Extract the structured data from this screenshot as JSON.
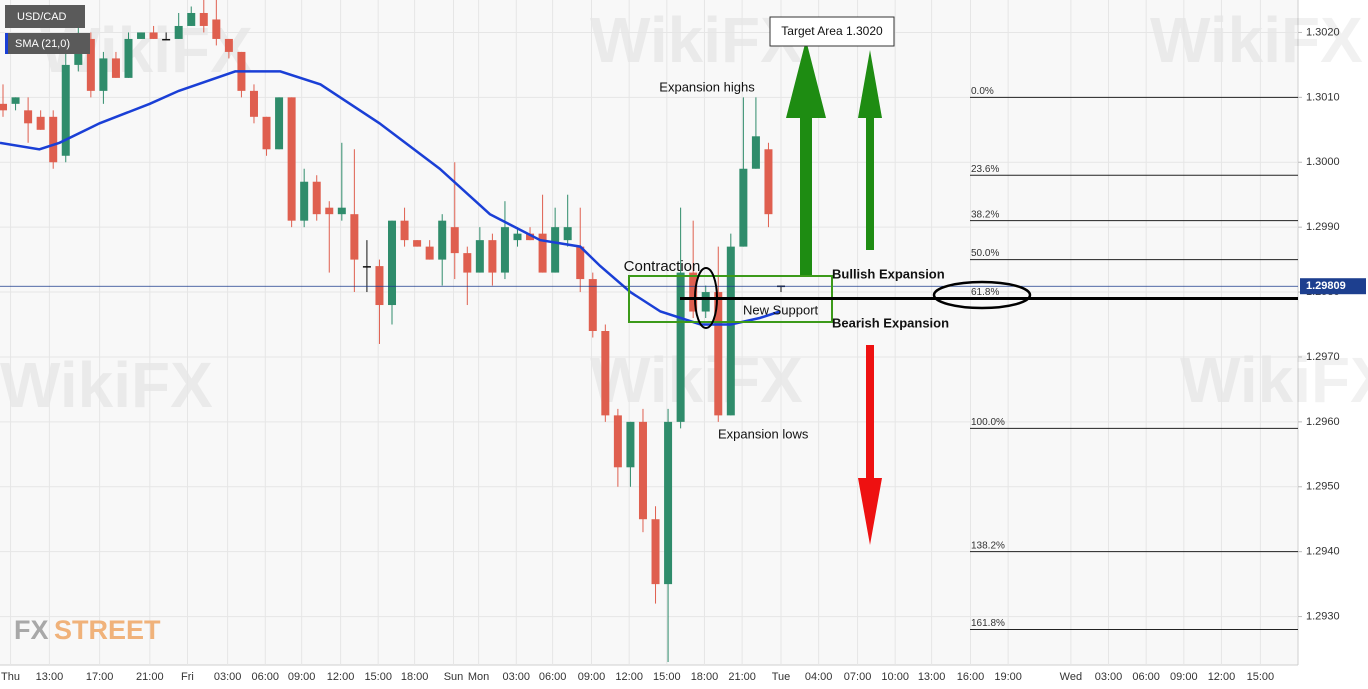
{
  "chart_data": {
    "type": "candlestick",
    "title": "USD/CAD",
    "x": [
      0,
      1,
      2,
      3,
      4,
      5,
      6,
      7,
      8,
      9,
      10,
      11,
      12,
      13,
      14,
      15,
      16,
      17,
      18,
      19,
      20,
      21,
      22,
      23,
      24,
      25,
      26,
      27,
      28,
      29,
      30,
      31,
      32,
      33,
      34,
      35,
      36,
      37,
      38,
      39,
      40,
      41,
      42,
      43,
      44,
      45,
      46,
      47,
      48,
      49,
      50,
      51,
      52,
      53,
      54,
      55,
      56,
      57,
      58,
      59,
      60,
      61,
      62
    ],
    "open": [
      1.3009,
      1.3009,
      1.3008,
      1.3007,
      1.3007,
      1.3001,
      1.3015,
      1.3019,
      1.3011,
      1.3016,
      1.3013,
      1.3019,
      1.302,
      1.3019,
      1.3019,
      1.3021,
      1.3023,
      1.3022,
      1.3019,
      1.3017,
      1.3011,
      1.3007,
      1.3002,
      1.301,
      1.2991,
      1.2997,
      1.2993,
      1.2992,
      1.2992,
      1.2984,
      1.2984,
      1.2978,
      1.2991,
      1.2988,
      1.2987,
      1.2985,
      1.299,
      1.2986,
      1.2983,
      1.2988,
      1.2983,
      1.2988,
      1.2989,
      1.2989,
      1.2983,
      1.2988,
      1.2987,
      1.2982,
      1.2974,
      1.2961,
      1.2953,
      1.296,
      1.2945,
      1.2935,
      1.296,
      1.2983,
      1.2977,
      1.298,
      1.2961,
      1.2987,
      1.2999,
      1.3002,
      1.2981
    ],
    "high": [
      1.3012,
      1.301,
      1.301,
      1.3008,
      1.3008,
      1.3018,
      1.3021,
      1.302,
      1.3017,
      1.3017,
      1.302,
      1.302,
      1.3021,
      1.302,
      1.3023,
      1.3024,
      1.3025,
      1.3025,
      1.3019,
      1.3017,
      1.3012,
      1.3007,
      1.301,
      1.301,
      1.2999,
      1.2998,
      1.2994,
      1.3003,
      1.3002,
      1.2988,
      1.2985,
      1.2991,
      1.2993,
      1.2988,
      1.2988,
      1.2992,
      1.3,
      1.2987,
      1.299,
      1.2989,
      1.2994,
      1.299,
      1.299,
      1.2995,
      1.2993,
      1.2995,
      1.2993,
      1.2983,
      1.2975,
      1.2962,
      1.296,
      1.2962,
      1.2947,
      1.2962,
      1.2993,
      1.2991,
      1.2981,
      1.2987,
      1.2989,
      1.301,
      1.301,
      1.3003,
      1.2981
    ],
    "low": [
      1.3007,
      1.3008,
      1.3003,
      1.3005,
      1.2999,
      1.3,
      1.3014,
      1.301,
      1.3009,
      1.3013,
      1.3013,
      1.3019,
      1.3019,
      1.3019,
      1.3019,
      1.3021,
      1.302,
      1.3018,
      1.3016,
      1.301,
      1.3006,
      1.3001,
      1.3002,
      1.299,
      1.299,
      1.2991,
      1.2983,
      1.2991,
      1.298,
      1.298,
      1.2972,
      1.2975,
      1.2987,
      1.2987,
      1.2985,
      1.2981,
      1.2982,
      1.2978,
      1.2983,
      1.2981,
      1.2982,
      1.2987,
      1.2988,
      1.2983,
      1.2983,
      1.2987,
      1.298,
      1.2973,
      1.296,
      1.295,
      1.295,
      1.2943,
      1.2932,
      1.2923,
      1.2959,
      1.2976,
      1.2976,
      1.296,
      1.2961,
      1.2987,
      1.2999,
      1.299,
      1.298
    ],
    "close": [
      1.3008,
      1.301,
      1.3006,
      1.3005,
      1.3,
      1.3015,
      1.3018,
      1.3011,
      1.3016,
      1.3013,
      1.3019,
      1.302,
      1.3019,
      1.3019,
      1.3021,
      1.3023,
      1.3021,
      1.3019,
      1.3017,
      1.3011,
      1.3007,
      1.3002,
      1.301,
      1.2991,
      1.2997,
      1.2992,
      1.2992,
      1.2993,
      1.2985,
      1.2984,
      1.2978,
      1.2991,
      1.2988,
      1.2987,
      1.2985,
      1.2991,
      1.2986,
      1.2983,
      1.2988,
      1.2983,
      1.299,
      1.2989,
      1.2988,
      1.2983,
      1.299,
      1.299,
      1.2982,
      1.2974,
      1.2961,
      1.2953,
      1.296,
      1.2945,
      1.2935,
      1.296,
      1.2983,
      1.2977,
      1.298,
      1.2961,
      1.2987,
      1.2999,
      1.3004,
      1.2992,
      1.2981
    ],
    "up_color": "#2f8c6b",
    "down_color": "#df5f4f",
    "xlim": [
      -0.24,
      103.2
    ],
    "xticks": [
      {
        "value": 0.6,
        "label": "Thu"
      },
      {
        "value": 3.7,
        "label": "13:00"
      },
      {
        "value": 7.7,
        "label": "17:00"
      },
      {
        "value": 11.7,
        "label": "21:00"
      },
      {
        "value": 14.7,
        "label": "Fri"
      },
      {
        "value": 17.9,
        "label": "03:00"
      },
      {
        "value": 20.9,
        "label": "06:00"
      },
      {
        "value": 23.8,
        "label": "09:00"
      },
      {
        "value": 26.9,
        "label": "12:00"
      },
      {
        "value": 29.9,
        "label": "15:00"
      },
      {
        "value": 32.8,
        "label": "18:00"
      },
      {
        "value": 35.9,
        "label": "Sun"
      },
      {
        "value": 37.9,
        "label": "Mon"
      },
      {
        "value": 40.9,
        "label": "03:00"
      },
      {
        "value": 43.8,
        "label": "06:00"
      },
      {
        "value": 46.9,
        "label": "09:00"
      },
      {
        "value": 49.9,
        "label": "12:00"
      },
      {
        "value": 52.9,
        "label": "15:00"
      },
      {
        "value": 55.9,
        "label": "18:00"
      },
      {
        "value": 58.9,
        "label": "21:00"
      },
      {
        "value": 62.0,
        "label": "Tue"
      },
      {
        "value": 65.0,
        "label": "04:00"
      },
      {
        "value": 68.1,
        "label": "07:00"
      },
      {
        "value": 71.1,
        "label": "10:00"
      },
      {
        "value": 74.0,
        "label": "13:00"
      },
      {
        "value": 77.1,
        "label": "16:00"
      },
      {
        "value": 80.1,
        "label": "19:00"
      },
      {
        "value": 85.1,
        "label": "Wed"
      },
      {
        "value": 88.1,
        "label": "03:00"
      },
      {
        "value": 91.1,
        "label": "06:00"
      },
      {
        "value": 94.1,
        "label": "09:00"
      },
      {
        "value": 97.1,
        "label": "12:00"
      },
      {
        "value": 100.2,
        "label": "15:00"
      }
    ],
    "ylim": [
      1.2923,
      1.3025
    ],
    "yticks": [
      {
        "value": 1.293,
        "label": "1.2930"
      },
      {
        "value": 1.294,
        "label": "1.2940"
      },
      {
        "value": 1.295,
        "label": "1.2950"
      },
      {
        "value": 1.296,
        "label": "1.2960"
      },
      {
        "value": 1.297,
        "label": "1.2970"
      },
      {
        "value": 1.298,
        "label": "1.2980"
      },
      {
        "value": 1.299,
        "label": "1.2990"
      },
      {
        "value": 1.3,
        "label": "1.3000"
      },
      {
        "value": 1.301,
        "label": "1.3010"
      },
      {
        "value": 1.302,
        "label": "1.3020"
      }
    ],
    "grid": true,
    "sma": {
      "name": "SMA (21,0)",
      "color": "#1a3fd6",
      "x": [
        -0.24,
        2.9,
        4.5,
        7.7,
        11.7,
        14.0,
        18.5,
        22.1,
        25.3,
        30.0,
        34.8,
        38.8,
        42.8,
        46.0,
        47.6,
        50.0,
        52.4,
        55.6,
        58.0,
        60.3,
        61.9
      ],
      "values": [
        1.3003,
        1.3002,
        1.3003,
        1.3006,
        1.3009,
        1.3011,
        1.3014,
        1.3014,
        1.3012,
        1.3006,
        1.2999,
        1.2992,
        1.2988,
        1.2987,
        1.2984,
        1.298,
        1.2977,
        1.2975,
        1.2975,
        1.2976,
        1.2977
      ]
    },
    "price_line": {
      "value": 1.29809,
      "label": "1.29809"
    },
    "fib": [
      {
        "value": 1.301,
        "label": "0.0%"
      },
      {
        "value": 1.2998,
        "label": "23.6%"
      },
      {
        "value": 1.2991,
        "label": "38.2%"
      },
      {
        "value": 1.2985,
        "label": "50.0%"
      },
      {
        "value": 1.2979,
        "label": "61.8%"
      },
      {
        "value": 1.2959,
        "label": "100.0%"
      },
      {
        "value": 1.294,
        "label": "138.2%"
      },
      {
        "value": 1.2928,
        "label": "161.8%"
      }
    ],
    "annotations": {
      "target": "Target Area 1.3020",
      "highs": "Expansion highs",
      "contraction": "Contraction",
      "bullish": "Bullish Expansion",
      "support": "New Support",
      "bearish": "Bearish Expansion",
      "lows": "Expansion lows"
    },
    "watermark": "WikiFX",
    "logo": [
      "FX",
      "STREET"
    ]
  }
}
